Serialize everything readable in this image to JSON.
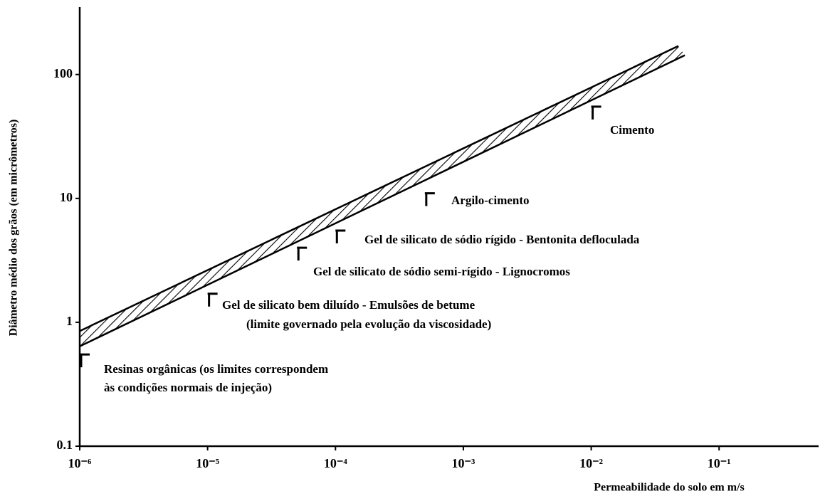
{
  "chart_data": {
    "type": "line",
    "log_x": true,
    "log_y": true,
    "xlabel": "Permeabilidade do solo em m/s",
    "ylabel": "Diâmetro médio dos grãos (em micrômetros)",
    "xlim": [
      1e-06,
      0.6
    ],
    "ylim": [
      0.1,
      350
    ],
    "xticks": [
      {
        "value": 1e-06,
        "label": "10⁻⁶"
      },
      {
        "value": 1e-05,
        "label": "10⁻⁵"
      },
      {
        "value": 0.0001,
        "label": "10⁻⁴"
      },
      {
        "value": 0.001,
        "label": "10⁻³"
      },
      {
        "value": 0.01,
        "label": "10⁻²"
      },
      {
        "value": 0.1,
        "label": "10⁻¹"
      }
    ],
    "yticks": [
      0.1,
      1,
      10,
      100
    ],
    "hatched_band": true,
    "series": [
      {
        "color": "#000000",
        "x": [
          1e-06,
          0.048
        ],
        "values": [
          0.85,
          170
        ]
      },
      {
        "color": "#000000",
        "x": [
          1e-06,
          0.054
        ],
        "values": [
          0.64,
          143
        ]
      }
    ],
    "markers": [
      {
        "x": 1e-06,
        "y": 0.55,
        "label": [
          "Resinas orgânicas (os limites correspondem",
          "às condições normais de injeção)"
        ]
      },
      {
        "x": 1e-05,
        "y": 1.7,
        "label": [
          "Gel de silicato bem diluído - Emulsões de betume",
          "(limite governado pela evolução da viscosidade)"
        ]
      },
      {
        "x": 5e-05,
        "y": 4,
        "label": [
          "Gel de silicato de sódio semi-rígido - Lignocromos"
        ]
      },
      {
        "x": 0.0001,
        "y": 5.5,
        "label": [
          "Gel de silicato de sódio rígido - Bentonita defloculada"
        ]
      },
      {
        "x": 0.0005,
        "y": 11,
        "label": [
          "Argilo-cimento"
        ]
      },
      {
        "x": 0.01,
        "y": 55,
        "label": [
          "Cimento"
        ]
      }
    ]
  }
}
